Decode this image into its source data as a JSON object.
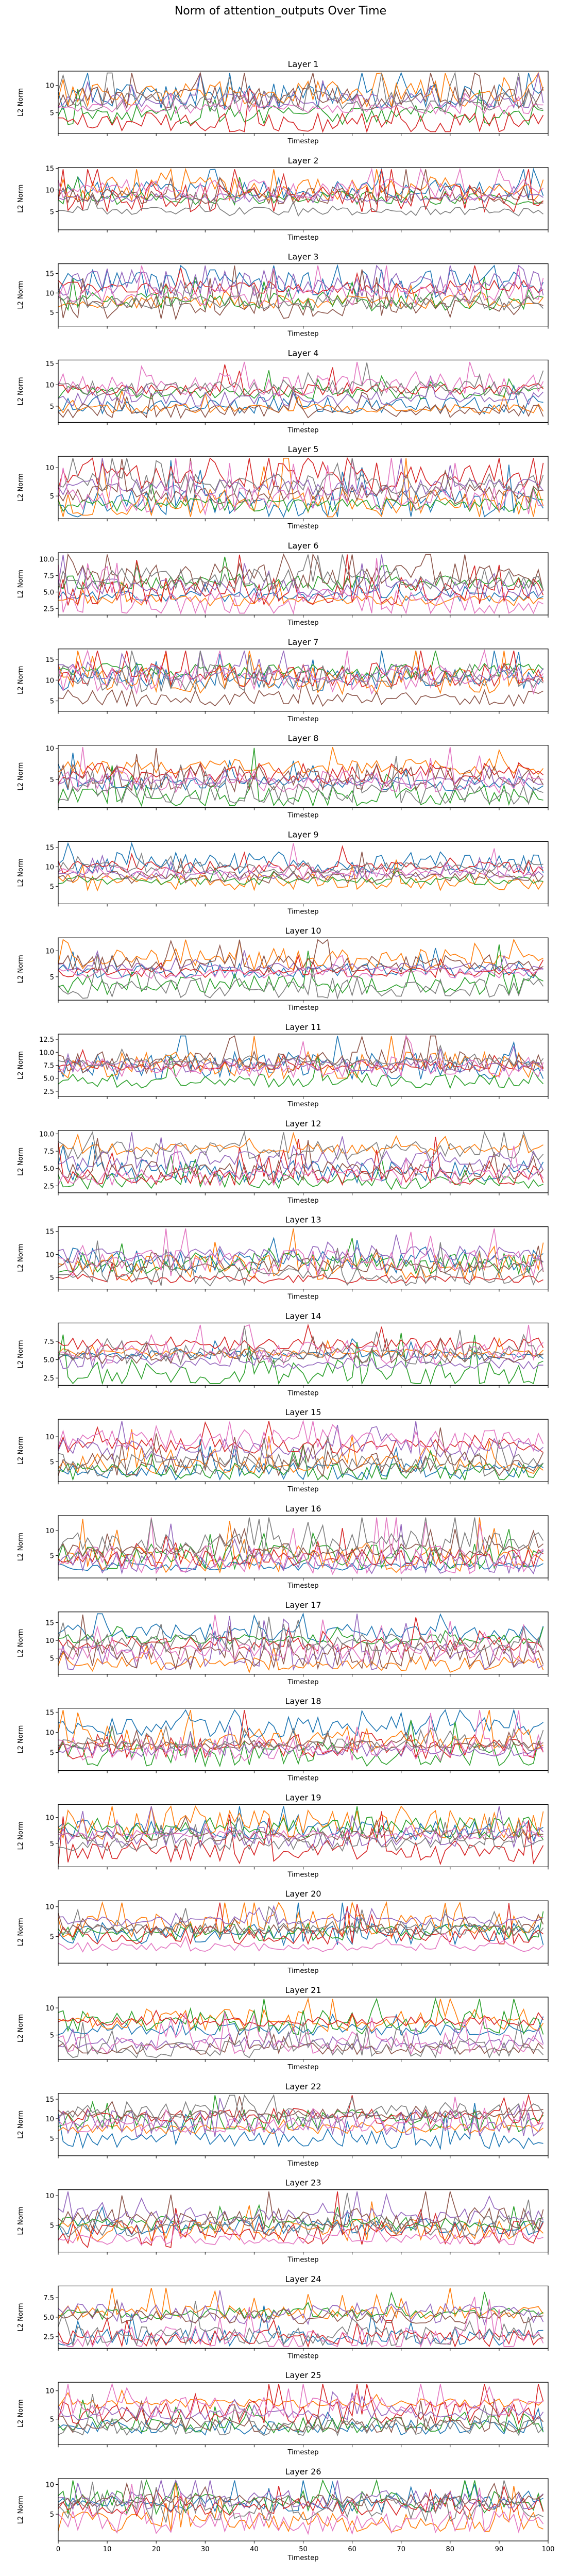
{
  "figure": {
    "title": "Norm of attention_outputs Over Time"
  },
  "colors": [
    "#1f77b4",
    "#ff7f0e",
    "#2ca02c",
    "#d62728",
    "#9467bd",
    "#8c564b",
    "#e377c2",
    "#7f7f7f"
  ],
  "chart_data": [
    {
      "type": "line",
      "title": "Layer 1",
      "xlabel": "Timestep",
      "ylabel": "L2 Norm",
      "xlim": [
        0,
        100
      ],
      "ylim": [
        1.2,
        12.6
      ],
      "yticks": [
        "5",
        "10"
      ],
      "yticks_values": [
        5,
        10
      ],
      "x_ticks_shown": false,
      "n_series": 8,
      "n_points": 100,
      "grid": false,
      "legend": "none"
    },
    {
      "type": "line",
      "title": "Layer 2",
      "xlabel": "Timestep",
      "ylabel": "L2 Norm",
      "xlim": [
        0,
        100
      ],
      "ylim": [
        0.8,
        15.2
      ],
      "yticks": [
        "5",
        "10",
        "15"
      ],
      "yticks_values": [
        5,
        10,
        15
      ],
      "x_ticks_shown": false,
      "n_series": 8,
      "n_points": 100,
      "grid": false,
      "legend": "none"
    },
    {
      "type": "line",
      "title": "Layer 3",
      "xlabel": "Timestep",
      "ylabel": "L2 Norm",
      "xlim": [
        0,
        100
      ],
      "ylim": [
        1.5,
        17.5
      ],
      "yticks": [
        "5",
        "10",
        "15"
      ],
      "yticks_values": [
        5,
        10,
        15
      ],
      "x_ticks_shown": false,
      "n_series": 8,
      "n_points": 100,
      "grid": false,
      "legend": "none"
    },
    {
      "type": "line",
      "title": "Layer 4",
      "xlabel": "Timestep",
      "ylabel": "L2 Norm",
      "xlim": [
        0,
        100
      ],
      "ylim": [
        1.2,
        15.8
      ],
      "yticks": [
        "5",
        "10",
        "15"
      ],
      "yticks_values": [
        5,
        10,
        15
      ],
      "x_ticks_shown": false,
      "n_series": 8,
      "n_points": 100,
      "grid": false,
      "legend": "none"
    },
    {
      "type": "line",
      "title": "Layer 5",
      "xlabel": "Timestep",
      "ylabel": "L2 Norm",
      "xlim": [
        0,
        100
      ],
      "ylim": [
        1.0,
        12.0
      ],
      "yticks": [
        "5",
        "10"
      ],
      "yticks_values": [
        5,
        10
      ],
      "x_ticks_shown": false,
      "n_series": 8,
      "n_points": 100,
      "grid": false,
      "legend": "none"
    },
    {
      "type": "line",
      "title": "Layer 6",
      "xlabel": "Timestep",
      "ylabel": "L2 Norm",
      "xlim": [
        0,
        100
      ],
      "ylim": [
        1.5,
        11.0
      ],
      "yticks": [
        "2.5",
        "5.0",
        "7.5",
        "10.0"
      ],
      "yticks_values": [
        2.5,
        5,
        7.5,
        10
      ],
      "x_ticks_shown": false,
      "n_series": 8,
      "n_points": 100,
      "grid": false,
      "legend": "none"
    },
    {
      "type": "line",
      "title": "Layer 7",
      "xlabel": "Timestep",
      "ylabel": "L2 Norm",
      "xlim": [
        0,
        100
      ],
      "ylim": [
        2.5,
        17.5
      ],
      "yticks": [
        "5",
        "10",
        "15"
      ],
      "yticks_values": [
        5,
        10,
        15
      ],
      "x_ticks_shown": false,
      "n_series": 8,
      "n_points": 100,
      "grid": false,
      "legend": "none"
    },
    {
      "type": "line",
      "title": "Layer 8",
      "xlabel": "Timestep",
      "ylabel": "L2 Norm",
      "xlim": [
        0,
        100
      ],
      "ylim": [
        0.5,
        10.5
      ],
      "yticks": [
        "5",
        "10"
      ],
      "yticks_values": [
        5,
        10
      ],
      "x_ticks_shown": false,
      "n_series": 8,
      "n_points": 100,
      "grid": false,
      "legend": "none"
    },
    {
      "type": "line",
      "title": "Layer 9",
      "xlabel": "Timestep",
      "ylabel": "L2 Norm",
      "xlim": [
        0,
        100
      ],
      "ylim": [
        0.5,
        16.5
      ],
      "yticks": [
        "5",
        "10",
        "15"
      ],
      "yticks_values": [
        5,
        10,
        15
      ],
      "x_ticks_shown": false,
      "n_series": 8,
      "n_points": 100,
      "grid": false,
      "legend": "none"
    },
    {
      "type": "line",
      "title": "Layer 10",
      "xlabel": "Timestep",
      "ylabel": "L2 Norm",
      "xlim": [
        0,
        100
      ],
      "ylim": [
        0.5,
        12.5
      ],
      "yticks": [
        "5",
        "10"
      ],
      "yticks_values": [
        5,
        10
      ],
      "x_ticks_shown": false,
      "n_series": 8,
      "n_points": 100,
      "grid": false,
      "legend": "none"
    },
    {
      "type": "line",
      "title": "Layer 11",
      "xlabel": "Timestep",
      "ylabel": "L2 Norm",
      "xlim": [
        0,
        100
      ],
      "ylim": [
        1.5,
        13.5
      ],
      "yticks": [
        "2.5",
        "5.0",
        "7.5",
        "10.0",
        "12.5"
      ],
      "yticks_values": [
        2.5,
        5,
        7.5,
        10,
        12.5
      ],
      "x_ticks_shown": false,
      "n_series": 8,
      "n_points": 100,
      "grid": false,
      "legend": "none"
    },
    {
      "type": "line",
      "title": "Layer 12",
      "xlabel": "Timestep",
      "ylabel": "L2 Norm",
      "xlim": [
        0,
        100
      ],
      "ylim": [
        1.5,
        10.5
      ],
      "yticks": [
        "2.5",
        "5.0",
        "7.5",
        "10.0"
      ],
      "yticks_values": [
        2.5,
        5,
        7.5,
        10
      ],
      "x_ticks_shown": false,
      "n_series": 8,
      "n_points": 100,
      "grid": false,
      "legend": "none"
    },
    {
      "type": "line",
      "title": "Layer 13",
      "xlabel": "Timestep",
      "ylabel": "L2 Norm",
      "xlim": [
        0,
        100
      ],
      "ylim": [
        2.5,
        16.0
      ],
      "yticks": [
        "5",
        "10",
        "15"
      ],
      "yticks_values": [
        5,
        10,
        15
      ],
      "x_ticks_shown": false,
      "n_series": 8,
      "n_points": 100,
      "grid": false,
      "legend": "none"
    },
    {
      "type": "line",
      "title": "Layer 14",
      "xlabel": "Timestep",
      "ylabel": "L2 Norm",
      "xlim": [
        0,
        100
      ],
      "ylim": [
        1.5,
        10.0
      ],
      "yticks": [
        "2.5",
        "5.0",
        "7.5"
      ],
      "yticks_values": [
        2.5,
        5,
        7.5
      ],
      "x_ticks_shown": false,
      "n_series": 8,
      "n_points": 100,
      "grid": false,
      "legend": "none"
    },
    {
      "type": "line",
      "title": "Layer 15",
      "xlabel": "Timestep",
      "ylabel": "L2 Norm",
      "xlim": [
        0,
        100
      ],
      "ylim": [
        1.0,
        13.5
      ],
      "yticks": [
        "5",
        "10"
      ],
      "yticks_values": [
        5,
        10
      ],
      "x_ticks_shown": false,
      "n_series": 8,
      "n_points": 100,
      "grid": false,
      "legend": "none"
    },
    {
      "type": "line",
      "title": "Layer 16",
      "xlabel": "Timestep",
      "ylabel": "L2 Norm",
      "xlim": [
        0,
        100
      ],
      "ylim": [
        0.5,
        13.0
      ],
      "yticks": [
        "5",
        "10"
      ],
      "yticks_values": [
        5,
        10
      ],
      "x_ticks_shown": false,
      "n_series": 8,
      "n_points": 100,
      "grid": false,
      "legend": "none"
    },
    {
      "type": "line",
      "title": "Layer 17",
      "xlabel": "Timestep",
      "ylabel": "L2 Norm",
      "xlim": [
        0,
        100
      ],
      "ylim": [
        0.5,
        18.0
      ],
      "yticks": [
        "5",
        "10",
        "15"
      ],
      "yticks_values": [
        5,
        10,
        15
      ],
      "x_ticks_shown": false,
      "n_series": 8,
      "n_points": 100,
      "grid": false,
      "legend": "none"
    },
    {
      "type": "line",
      "title": "Layer 18",
      "xlabel": "Timestep",
      "ylabel": "L2 Norm",
      "xlim": [
        0,
        100
      ],
      "ylim": [
        0.5,
        16.0
      ],
      "yticks": [
        "5",
        "10",
        "15"
      ],
      "yticks_values": [
        5,
        10,
        15
      ],
      "x_ticks_shown": false,
      "n_series": 8,
      "n_points": 100,
      "grid": false,
      "legend": "none"
    },
    {
      "type": "line",
      "title": "Layer 19",
      "xlabel": "Timestep",
      "ylabel": "L2 Norm",
      "xlim": [
        0,
        100
      ],
      "ylim": [
        0.5,
        12.5
      ],
      "yticks": [
        "5",
        "10"
      ],
      "yticks_values": [
        5,
        10
      ],
      "x_ticks_shown": false,
      "n_series": 8,
      "n_points": 100,
      "grid": false,
      "legend": "none"
    },
    {
      "type": "line",
      "title": "Layer 20",
      "xlabel": "Timestep",
      "ylabel": "L2 Norm",
      "xlim": [
        0,
        100
      ],
      "ylim": [
        0.5,
        11.0
      ],
      "yticks": [
        "5",
        "10"
      ],
      "yticks_values": [
        5,
        10
      ],
      "x_ticks_shown": false,
      "n_series": 8,
      "n_points": 100,
      "grid": false,
      "legend": "none"
    },
    {
      "type": "line",
      "title": "Layer 21",
      "xlabel": "Timestep",
      "ylabel": "L2 Norm",
      "xlim": [
        0,
        100
      ],
      "ylim": [
        0.5,
        12.0
      ],
      "yticks": [
        "5",
        "10"
      ],
      "yticks_values": [
        5,
        10
      ],
      "x_ticks_shown": false,
      "n_series": 8,
      "n_points": 100,
      "grid": false,
      "legend": "none"
    },
    {
      "type": "line",
      "title": "Layer 22",
      "xlabel": "Timestep",
      "ylabel": "L2 Norm",
      "xlim": [
        0,
        100
      ],
      "ylim": [
        0.5,
        16.5
      ],
      "yticks": [
        "5",
        "10",
        "15"
      ],
      "yticks_values": [
        5,
        10,
        15
      ],
      "x_ticks_shown": false,
      "n_series": 8,
      "n_points": 100,
      "grid": false,
      "legend": "none"
    },
    {
      "type": "line",
      "title": "Layer 23",
      "xlabel": "Timestep",
      "ylabel": "L2 Norm",
      "xlim": [
        0,
        100
      ],
      "ylim": [
        0.5,
        11.0
      ],
      "yticks": [
        "5",
        "10"
      ],
      "yticks_values": [
        5,
        10
      ],
      "x_ticks_shown": false,
      "n_series": 8,
      "n_points": 100,
      "grid": false,
      "legend": "none"
    },
    {
      "type": "line",
      "title": "Layer 24",
      "xlabel": "Timestep",
      "ylabel": "L2 Norm",
      "xlim": [
        0,
        100
      ],
      "ylim": [
        1.0,
        9.0
      ],
      "yticks": [
        "2.5",
        "5.0",
        "7.5"
      ],
      "yticks_values": [
        2.5,
        5,
        7.5
      ],
      "x_ticks_shown": false,
      "n_series": 8,
      "n_points": 100,
      "grid": false,
      "legend": "none"
    },
    {
      "type": "line",
      "title": "Layer 25",
      "xlabel": "Timestep",
      "ylabel": "L2 Norm",
      "xlim": [
        0,
        100
      ],
      "ylim": [
        0.5,
        11.5
      ],
      "yticks": [
        "5",
        "10"
      ],
      "yticks_values": [
        5,
        10
      ],
      "x_ticks_shown": false,
      "n_series": 8,
      "n_points": 100,
      "grid": false,
      "legend": "none"
    },
    {
      "type": "line",
      "title": "Layer 26",
      "xlabel": "Timestep",
      "ylabel": "L2 Norm",
      "xlim": [
        0,
        100
      ],
      "ylim": [
        0.5,
        11.0
      ],
      "yticks": [
        "5",
        "10"
      ],
      "yticks_values": [
        5,
        10
      ],
      "xticks": [
        "0",
        "10",
        "20",
        "30",
        "40",
        "50",
        "60",
        "70",
        "80",
        "90",
        "100"
      ],
      "xticks_values": [
        0,
        10,
        20,
        30,
        40,
        50,
        60,
        70,
        80,
        90,
        100
      ],
      "x_ticks_shown": true,
      "n_series": 8,
      "n_points": 100,
      "grid": false,
      "legend": "none"
    }
  ]
}
